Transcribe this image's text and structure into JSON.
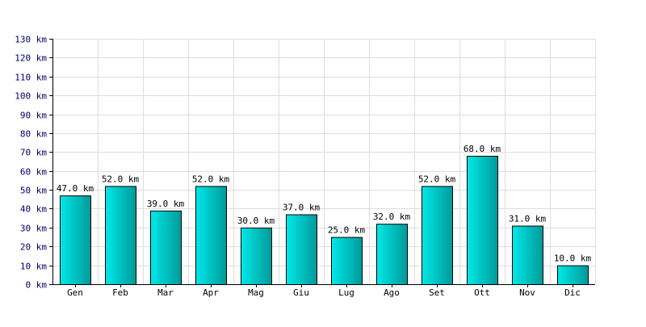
{
  "chart_data": {
    "type": "bar",
    "categories": [
      "Gen",
      "Feb",
      "Mar",
      "Apr",
      "Mag",
      "Giu",
      "Lug",
      "Ago",
      "Set",
      "Ott",
      "Nov",
      "Dic"
    ],
    "values": [
      47.0,
      52.0,
      39.0,
      52.0,
      30.0,
      37.0,
      25.0,
      32.0,
      52.0,
      68.0,
      31.0,
      10.0
    ],
    "data_labels": [
      "47.0 km",
      "52.0 km",
      "39.0 km",
      "52.0 km",
      "30.0 km",
      "37.0 km",
      "25.0 km",
      "32.0 km",
      "52.0 km",
      "68.0 km",
      "31.0 km",
      "10.0 km"
    ],
    "yticks": [
      "0 km",
      "10 km",
      "20 km",
      "30 km",
      "40 km",
      "50 km",
      "60 km",
      "70 km",
      "80 km",
      "90 km",
      "100 km",
      "110 km",
      "120 km",
      "130 km"
    ],
    "ylim": [
      0,
      130
    ],
    "grid": true,
    "title": "",
    "xlabel": "",
    "ylabel": "",
    "colors": {
      "bar_top": "#00e8e8",
      "bar_bottom": "#009a9a",
      "bar_outline": "#000000",
      "grid": "#dddddd",
      "axis": "#000000",
      "ytick_text": "#000066"
    }
  }
}
